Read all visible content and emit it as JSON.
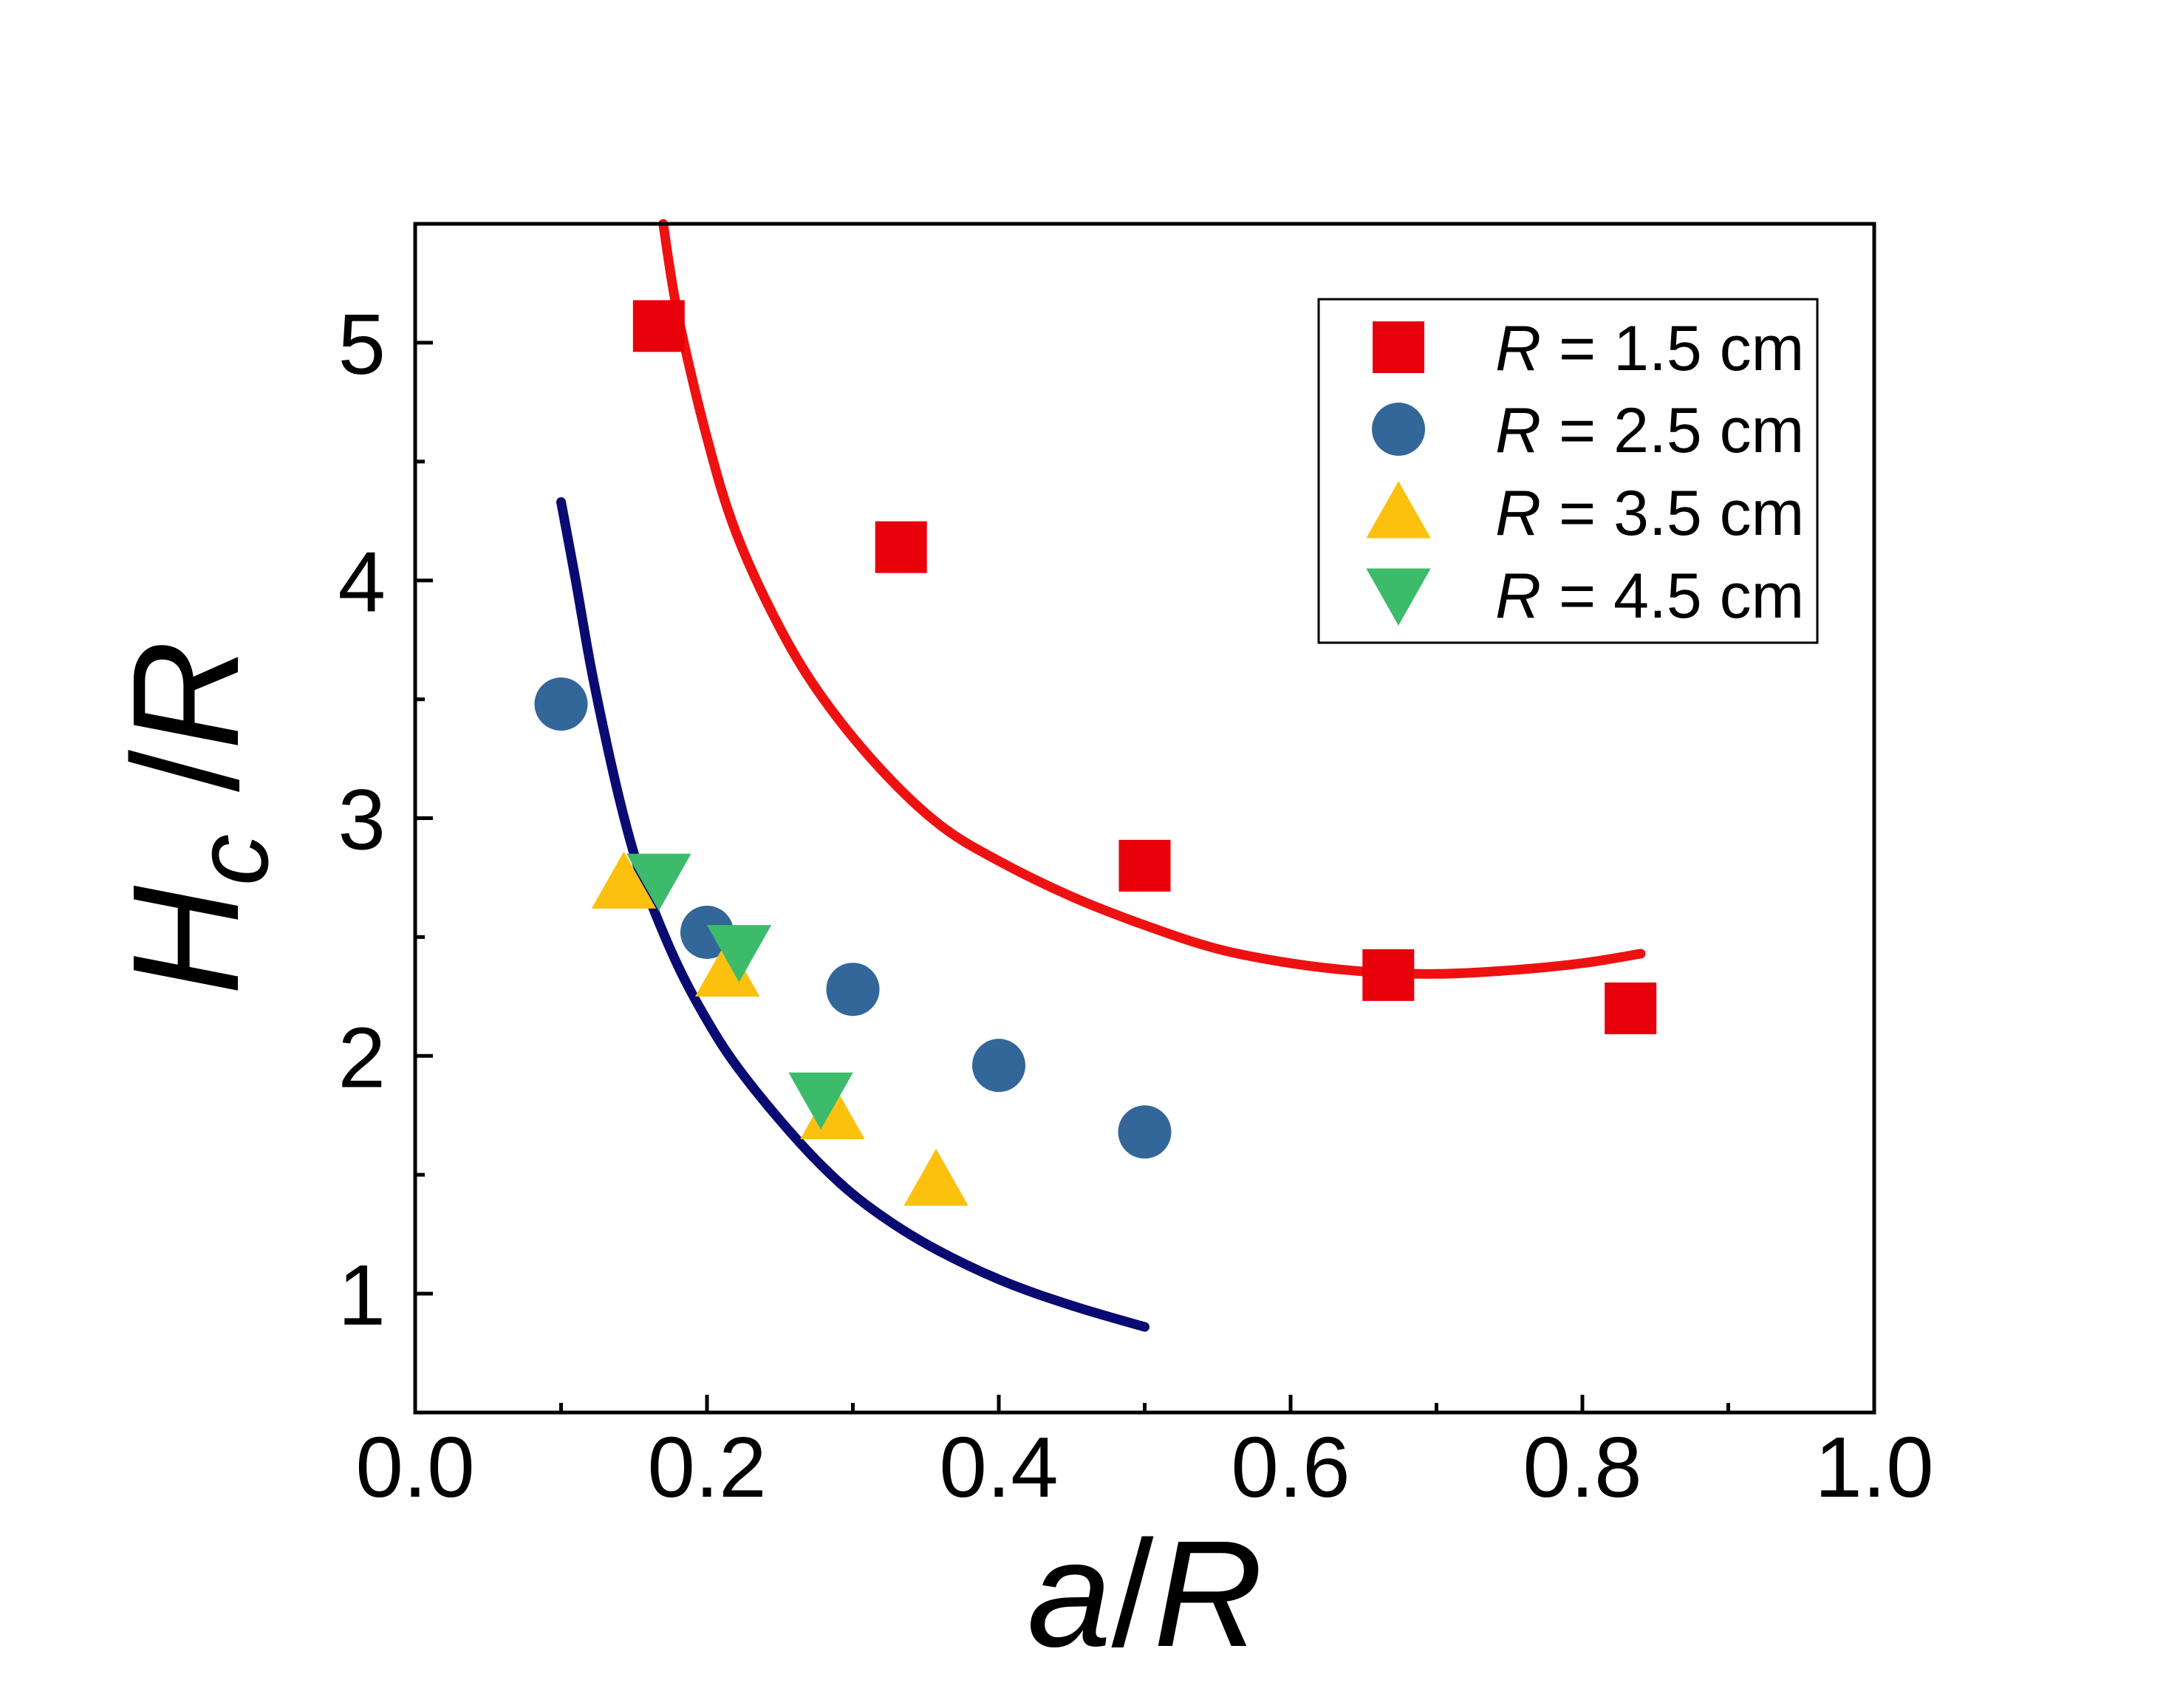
{
  "chart_data": {
    "type": "scatter",
    "title": "",
    "xlabel": {
      "var": "a",
      "sep": "/",
      "unit": "R"
    },
    "ylabel": {
      "main": "H",
      "sub": "c",
      "sep": " /",
      "unit": "R"
    },
    "xlim": [
      0.0,
      1.0
    ],
    "ylim": [
      0.5,
      5.5
    ],
    "x_ticks": [
      0.0,
      0.2,
      0.4,
      0.6,
      0.8,
      1.0
    ],
    "x_tick_labels": [
      "0.0",
      "0.2",
      "0.4",
      "0.6",
      "0.8",
      "1.0"
    ],
    "x_minor_ticks": [
      0.1,
      0.3,
      0.5,
      0.7,
      0.9
    ],
    "y_ticks": [
      1,
      2,
      3,
      4,
      5
    ],
    "y_tick_labels": [
      "1",
      "2",
      "3",
      "4",
      "5"
    ],
    "y_minor_ticks": [
      1.5,
      2.5,
      3.5,
      4.5
    ],
    "grid": false,
    "legend_position": "top-right",
    "series": [
      {
        "name": "R = 1.5 cm",
        "label_var": "R",
        "label_value": " = 1.5 cm",
        "marker": "square",
        "color": "#e8000b",
        "x": [
          0.167,
          0.333,
          0.5,
          0.667,
          0.833
        ],
        "y": [
          5.07,
          4.14,
          2.8,
          2.34,
          2.2
        ]
      },
      {
        "name": "R = 2.5 cm",
        "label_var": "R",
        "label_value": " = 2.5 cm",
        "marker": "circle",
        "color": "#336699",
        "x": [
          0.1,
          0.2,
          0.3,
          0.4,
          0.5
        ],
        "y": [
          3.48,
          2.52,
          2.28,
          1.96,
          1.68
        ]
      },
      {
        "name": "R = 3.5 cm",
        "label_var": "R",
        "label_value": " = 3.5 cm",
        "marker": "triangle-up",
        "color": "#fcc10f",
        "x": [
          0.143,
          0.214,
          0.286,
          0.357
        ],
        "y": [
          2.73,
          2.36,
          1.76,
          1.48
        ]
      },
      {
        "name": "R = 4.5 cm",
        "label_var": "R",
        "label_value": " = 4.5 cm",
        "marker": "triangle-down",
        "color": "#3cbc6b",
        "x": [
          0.167,
          0.222,
          0.278
        ],
        "y": [
          2.74,
          2.44,
          1.82
        ]
      }
    ],
    "fit_curves": [
      {
        "name": "fit-red",
        "color": "#ee1111",
        "x": [
          0.17,
          0.18,
          0.2,
          0.22,
          0.25,
          0.28,
          0.32,
          0.36,
          0.4,
          0.45,
          0.5,
          0.55,
          0.6,
          0.65,
          0.7,
          0.75,
          0.8,
          0.84
        ],
        "y": [
          5.5,
          5.12,
          4.6,
          4.2,
          3.8,
          3.5,
          3.2,
          2.97,
          2.82,
          2.67,
          2.55,
          2.45,
          2.39,
          2.355,
          2.345,
          2.36,
          2.39,
          2.43
        ]
      },
      {
        "name": "fit-navy",
        "color": "#0a0a73",
        "x": [
          0.1,
          0.11,
          0.12,
          0.13,
          0.14,
          0.15,
          0.16,
          0.18,
          0.2,
          0.22,
          0.25,
          0.28,
          0.31,
          0.35,
          0.4,
          0.45,
          0.5
        ],
        "y": [
          4.33,
          4.0,
          3.65,
          3.35,
          3.08,
          2.85,
          2.67,
          2.38,
          2.15,
          1.96,
          1.73,
          1.53,
          1.37,
          1.21,
          1.06,
          0.95,
          0.86
        ]
      }
    ]
  }
}
